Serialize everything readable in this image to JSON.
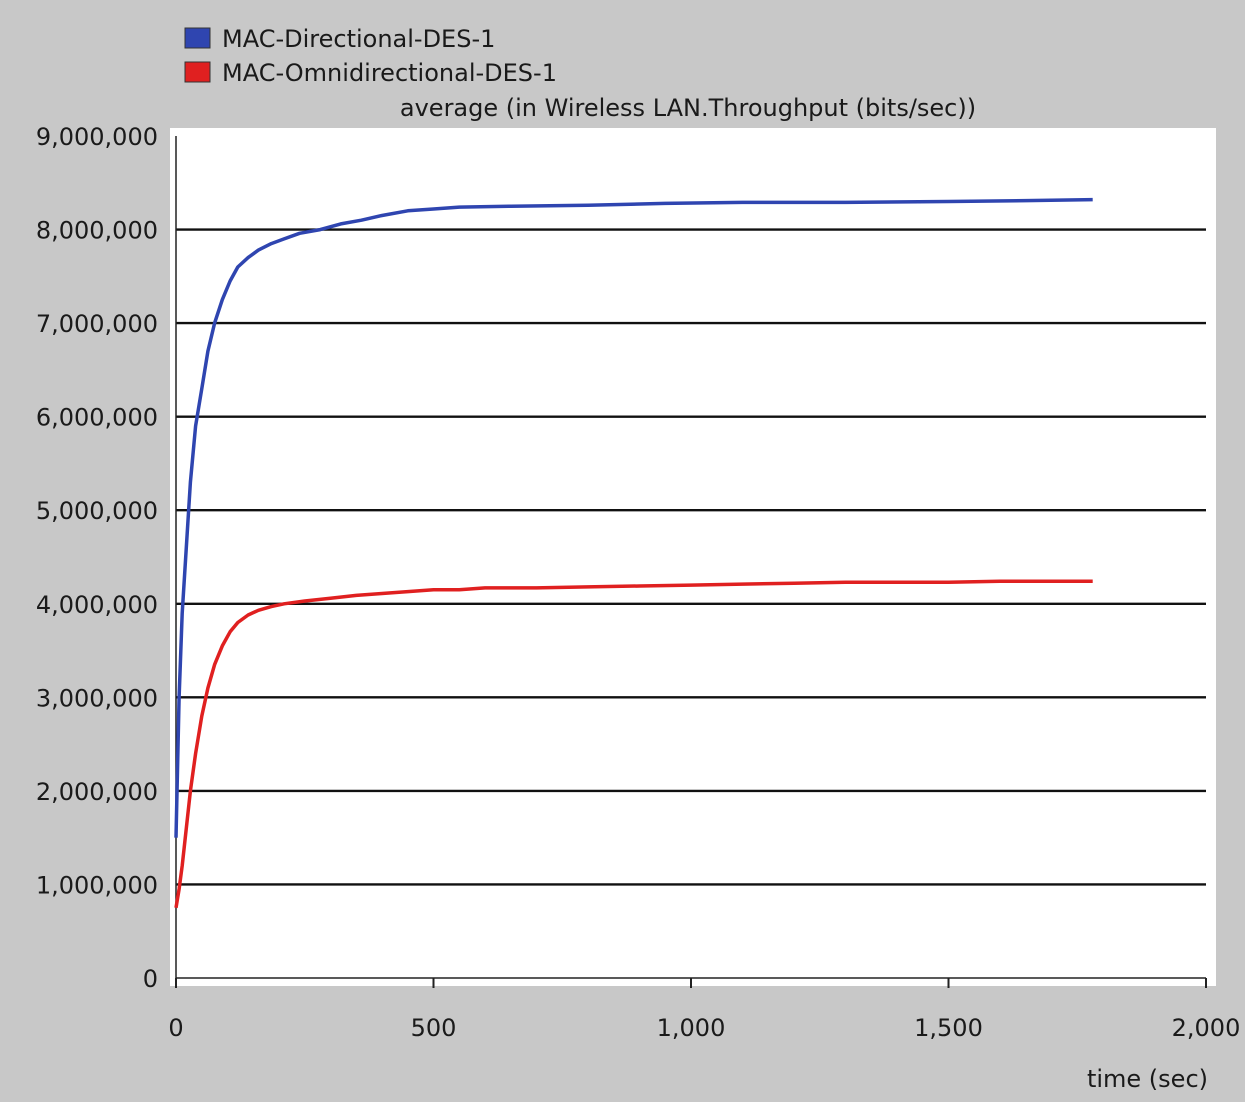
{
  "chart_data": {
    "type": "line",
    "title": "average (in Wireless LAN.Throughput (bits/sec))",
    "xlabel": "time (sec)",
    "ylabel": "",
    "xlim": [
      0,
      2000
    ],
    "ylim": [
      0,
      9000000
    ],
    "x_ticks": [
      0,
      500,
      1000,
      1500,
      2000
    ],
    "y_ticks": [
      0,
      1000000,
      2000000,
      3000000,
      4000000,
      5000000,
      6000000,
      7000000,
      8000000,
      9000000
    ],
    "grid": "horizontal",
    "legend_position": "top-left",
    "series": [
      {
        "name": "MAC-Directional-DES-1",
        "color": "#2f45b0",
        "points": [
          [
            0,
            1500000
          ],
          [
            6,
            3000000
          ],
          [
            12,
            3900000
          ],
          [
            20,
            4600000
          ],
          [
            28,
            5300000
          ],
          [
            38,
            5900000
          ],
          [
            50,
            6300000
          ],
          [
            62,
            6700000
          ],
          [
            75,
            7000000
          ],
          [
            90,
            7250000
          ],
          [
            105,
            7450000
          ],
          [
            120,
            7600000
          ],
          [
            140,
            7700000
          ],
          [
            160,
            7780000
          ],
          [
            185,
            7850000
          ],
          [
            210,
            7900000
          ],
          [
            240,
            7960000
          ],
          [
            280,
            8000000
          ],
          [
            320,
            8060000
          ],
          [
            360,
            8100000
          ],
          [
            400,
            8150000
          ],
          [
            450,
            8200000
          ],
          [
            500,
            8220000
          ],
          [
            550,
            8240000
          ],
          [
            650,
            8250000
          ],
          [
            800,
            8260000
          ],
          [
            950,
            8280000
          ],
          [
            1100,
            8290000
          ],
          [
            1300,
            8290000
          ],
          [
            1500,
            8300000
          ],
          [
            1650,
            8310000
          ],
          [
            1780,
            8320000
          ]
        ]
      },
      {
        "name": "MAC-Omnidirectional-DES-1",
        "color": "#e02020",
        "points": [
          [
            0,
            750000
          ],
          [
            6,
            950000
          ],
          [
            12,
            1200000
          ],
          [
            20,
            1600000
          ],
          [
            28,
            2000000
          ],
          [
            38,
            2400000
          ],
          [
            50,
            2800000
          ],
          [
            62,
            3100000
          ],
          [
            75,
            3350000
          ],
          [
            90,
            3550000
          ],
          [
            105,
            3700000
          ],
          [
            120,
            3800000
          ],
          [
            140,
            3880000
          ],
          [
            160,
            3930000
          ],
          [
            185,
            3970000
          ],
          [
            210,
            4000000
          ],
          [
            250,
            4030000
          ],
          [
            300,
            4060000
          ],
          [
            350,
            4090000
          ],
          [
            400,
            4110000
          ],
          [
            450,
            4130000
          ],
          [
            500,
            4150000
          ],
          [
            550,
            4150000
          ],
          [
            600,
            4170000
          ],
          [
            700,
            4170000
          ],
          [
            800,
            4180000
          ],
          [
            900,
            4190000
          ],
          [
            1000,
            4200000
          ],
          [
            1100,
            4210000
          ],
          [
            1200,
            4220000
          ],
          [
            1300,
            4230000
          ],
          [
            1400,
            4230000
          ],
          [
            1500,
            4230000
          ],
          [
            1600,
            4240000
          ],
          [
            1700,
            4240000
          ],
          [
            1780,
            4240000
          ]
        ]
      }
    ]
  }
}
